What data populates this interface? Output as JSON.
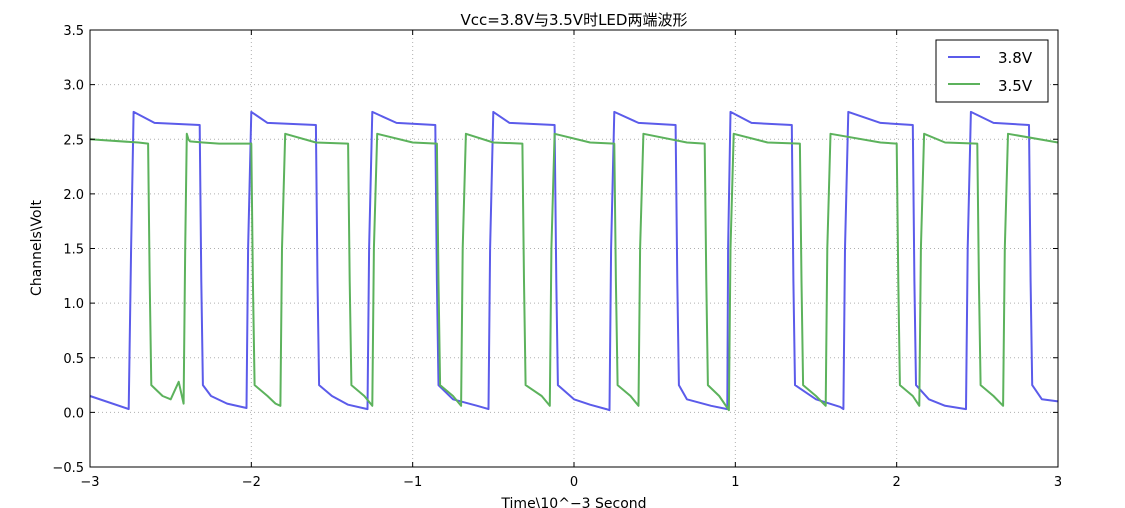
{
  "chart_data": {
    "type": "line",
    "title": "Vcc=3.8V与3.5V时LED两端波形",
    "xlabel": "Time\\10^−3 Second",
    "ylabel": "Channels\\Volt",
    "xlim": [
      -3,
      3
    ],
    "ylim": [
      -0.5,
      3.5
    ],
    "xticks": [
      -3,
      -2,
      -1,
      0,
      1,
      2,
      3
    ],
    "xtick_labels": [
      "−3",
      "−2",
      "−1",
      "0",
      "1",
      "2",
      "3"
    ],
    "yticks": [
      -0.5,
      0.0,
      0.5,
      1.0,
      1.5,
      2.0,
      2.5,
      3.0,
      3.5
    ],
    "ytick_labels": [
      "−0.5",
      "0.0",
      "0.5",
      "1.0",
      "1.5",
      "2.0",
      "2.5",
      "3.0",
      "3.5"
    ],
    "grid": true,
    "legend": "top-right",
    "series": [
      {
        "name": "3.8V",
        "color": "#5b5bea",
        "x": [
          -3.0,
          -2.76,
          -2.745,
          -2.73,
          -2.6,
          -2.32,
          -2.31,
          -2.3,
          -2.25,
          -2.15,
          -2.03,
          -2.02,
          -2.0,
          -1.9,
          -1.6,
          -1.59,
          -1.58,
          -1.5,
          -1.4,
          -1.28,
          -1.27,
          -1.25,
          -1.1,
          -0.86,
          -0.85,
          -0.84,
          -0.75,
          -0.6,
          -0.53,
          -0.52,
          -0.5,
          -0.4,
          -0.12,
          -0.11,
          -0.1,
          0.0,
          0.1,
          0.2,
          0.22,
          0.23,
          0.25,
          0.4,
          0.63,
          0.64,
          0.65,
          0.7,
          0.85,
          0.95,
          0.955,
          0.97,
          1.1,
          1.35,
          1.36,
          1.37,
          1.5,
          1.65,
          1.67,
          1.68,
          1.7,
          1.9,
          2.1,
          2.11,
          2.12,
          2.2,
          2.3,
          2.43,
          2.44,
          2.46,
          2.6,
          2.82,
          2.83,
          2.84,
          2.9,
          3.0
        ],
        "y": [
          0.15,
          0.03,
          1.5,
          2.75,
          2.65,
          2.63,
          1.2,
          0.25,
          0.15,
          0.08,
          0.04,
          1.5,
          2.75,
          2.65,
          2.63,
          1.2,
          0.25,
          0.15,
          0.07,
          0.03,
          1.5,
          2.75,
          2.65,
          2.63,
          1.2,
          0.25,
          0.12,
          0.06,
          0.03,
          1.5,
          2.75,
          2.65,
          2.63,
          1.2,
          0.25,
          0.12,
          0.07,
          0.03,
          0.02,
          1.5,
          2.75,
          2.65,
          2.63,
          1.2,
          0.25,
          0.12,
          0.06,
          0.03,
          1.5,
          2.75,
          2.65,
          2.63,
          1.2,
          0.25,
          0.12,
          0.05,
          0.03,
          1.5,
          2.75,
          2.65,
          2.63,
          1.2,
          0.25,
          0.12,
          0.06,
          0.03,
          1.5,
          2.75,
          2.65,
          2.63,
          1.2,
          0.25,
          0.12,
          0.1
        ]
      },
      {
        "name": "3.5V",
        "color": "#5cb25c",
        "x": [
          -3.0,
          -2.7,
          -2.64,
          -2.63,
          -2.62,
          -2.55,
          -2.5,
          -2.45,
          -2.42,
          -2.41,
          -2.4,
          -2.39,
          -2.38,
          -2.3,
          -2.2,
          -2.0,
          -1.99,
          -1.98,
          -1.9,
          -1.85,
          -1.82,
          -1.81,
          -1.79,
          -1.6,
          -1.4,
          -1.39,
          -1.38,
          -1.3,
          -1.25,
          -1.24,
          -1.22,
          -1.0,
          -0.85,
          -0.84,
          -0.83,
          -0.75,
          -0.7,
          -0.69,
          -0.67,
          -0.5,
          -0.32,
          -0.31,
          -0.3,
          -0.2,
          -0.15,
          -0.14,
          -0.12,
          0.1,
          0.25,
          0.26,
          0.27,
          0.35,
          0.4,
          0.41,
          0.43,
          0.7,
          0.81,
          0.82,
          0.83,
          0.9,
          0.96,
          0.97,
          0.99,
          1.2,
          1.4,
          1.41,
          1.42,
          1.5,
          1.56,
          1.57,
          1.59,
          1.9,
          2.0,
          2.01,
          2.02,
          2.1,
          2.14,
          2.15,
          2.17,
          2.3,
          2.5,
          2.51,
          2.52,
          2.6,
          2.66,
          2.67,
          2.69,
          3.0
        ],
        "y": [
          2.5,
          2.47,
          2.46,
          1.2,
          0.25,
          0.15,
          0.12,
          0.28,
          0.08,
          1.5,
          2.55,
          2.5,
          2.48,
          2.47,
          2.46,
          2.46,
          1.2,
          0.25,
          0.15,
          0.08,
          0.06,
          1.5,
          2.55,
          2.47,
          2.46,
          1.2,
          0.25,
          0.15,
          0.06,
          1.5,
          2.55,
          2.47,
          2.46,
          1.2,
          0.25,
          0.15,
          0.06,
          1.5,
          2.55,
          2.47,
          2.46,
          1.2,
          0.25,
          0.15,
          0.06,
          1.5,
          2.55,
          2.47,
          2.46,
          1.2,
          0.25,
          0.15,
          0.06,
          1.5,
          2.55,
          2.47,
          2.46,
          1.2,
          0.25,
          0.15,
          0.02,
          1.5,
          2.55,
          2.47,
          2.46,
          1.2,
          0.25,
          0.15,
          0.06,
          1.5,
          2.55,
          2.47,
          2.46,
          1.2,
          0.25,
          0.15,
          0.06,
          1.5,
          2.55,
          2.47,
          2.46,
          1.2,
          0.25,
          0.15,
          0.06,
          1.5,
          2.55,
          2.47
        ]
      }
    ]
  }
}
